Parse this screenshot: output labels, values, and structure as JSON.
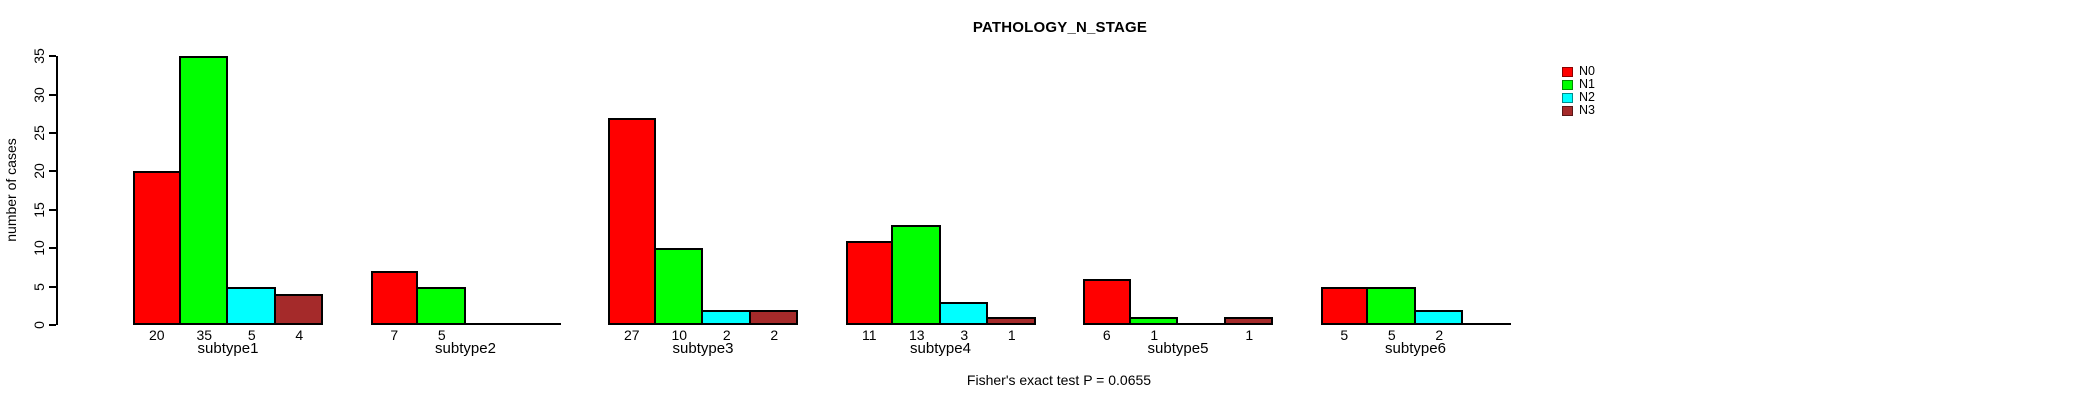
{
  "chart_data": {
    "type": "bar",
    "title": "PATHOLOGY_N_STAGE",
    "ylabel": "number of cases",
    "xlabel": "",
    "footer": "Fisher's exact test P = 0.0655",
    "categories": [
      "subtype1",
      "subtype2",
      "subtype3",
      "subtype4",
      "subtype5",
      "subtype6"
    ],
    "series": [
      {
        "name": "N0",
        "color": "#ff0000",
        "values": [
          20,
          7,
          27,
          11,
          6,
          5
        ]
      },
      {
        "name": "N1",
        "color": "#00ff00",
        "values": [
          35,
          5,
          10,
          13,
          1,
          5
        ]
      },
      {
        "name": "N2",
        "color": "#00ffff",
        "values": [
          5,
          0,
          2,
          3,
          0,
          2
        ]
      },
      {
        "name": "N3",
        "color": "#a52a2a",
        "values": [
          4,
          0,
          2,
          1,
          1,
          0
        ]
      }
    ],
    "bar_value_labels_shown_when": "value > 0",
    "yticks": [
      0,
      5,
      10,
      15,
      20,
      25,
      30,
      35
    ],
    "ylim": [
      0,
      35
    ],
    "grid": false,
    "legend_position": "right",
    "legend_entries": [
      "N0",
      "N1",
      "N2",
      "N3"
    ]
  }
}
